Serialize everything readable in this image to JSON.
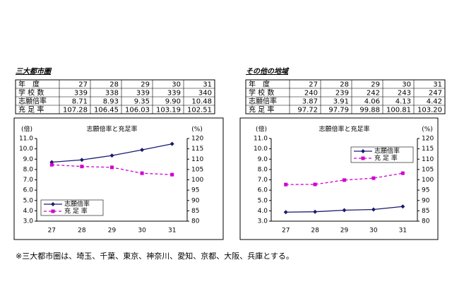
{
  "panels": [
    {
      "heading": "三大都市圏",
      "table": {
        "header": [
          "年　度",
          "27",
          "28",
          "29",
          "30",
          "31"
        ],
        "rows": [
          [
            "学 校 数",
            "339",
            "338",
            "339",
            "339",
            "340"
          ],
          [
            "志願倍率",
            "8.71",
            "8.93",
            "9.35",
            "9.90",
            "10.48"
          ],
          [
            "充 足 率",
            "107.28",
            "106.45",
            "106.03",
            "103.19",
            "102.51"
          ]
        ]
      }
    },
    {
      "heading": "その他の地域",
      "table": {
        "header": [
          "年　度",
          "27",
          "28",
          "29",
          "30",
          "31"
        ],
        "rows": [
          [
            "学 校 数",
            "240",
            "239",
            "242",
            "243",
            "247"
          ],
          [
            "志願倍率",
            "3.87",
            "3.91",
            "4.06",
            "4.13",
            "4.42"
          ],
          [
            "充 足 率",
            "97.72",
            "97.79",
            "99.88",
            "100.81",
            "103.20"
          ]
        ]
      }
    }
  ],
  "chart_data": [
    {
      "type": "line",
      "title": "志願倍率と充足率",
      "y_label": "(倍)",
      "y2_label": "(%)",
      "categories": [
        "27",
        "28",
        "29",
        "30",
        "31"
      ],
      "ylim": [
        3,
        11
      ],
      "yticks": [
        {
          "value": 3,
          "label": "3.0"
        },
        {
          "value": 4,
          "label": "4.0"
        },
        {
          "value": 5,
          "label": "5.0"
        },
        {
          "value": 6,
          "label": "6.0"
        },
        {
          "value": 7,
          "label": "7.0"
        },
        {
          "value": 8,
          "label": "8.0"
        },
        {
          "value": 9,
          "label": "9.0"
        },
        {
          "value": 10,
          "label": "10.0"
        },
        {
          "value": 11,
          "label": "11.0"
        }
      ],
      "y2lim": [
        80,
        120
      ],
      "y2ticks": [
        80,
        85,
        90,
        95,
        100,
        105,
        110,
        115,
        120
      ],
      "legend": "lower left",
      "series": [
        {
          "name": "志願倍率",
          "color": "#1a1a6e",
          "values": [
            8.71,
            8.93,
            9.35,
            9.9,
            10.48
          ]
        },
        {
          "name": "充 足 率",
          "color": "#d000d0",
          "axis": "y2",
          "values": [
            107.28,
            106.45,
            106.03,
            103.19,
            102.51
          ]
        }
      ]
    },
    {
      "type": "line",
      "title": "志願倍率と充足率",
      "y_label": "(倍)",
      "y2_label": "(%)",
      "categories": [
        "27",
        "28",
        "29",
        "30",
        "31"
      ],
      "ylim": [
        3,
        11
      ],
      "yticks": [
        {
          "value": 3,
          "label": "3.0"
        },
        {
          "value": 4,
          "label": "4.0"
        },
        {
          "value": 5,
          "label": "5.0"
        },
        {
          "value": 6,
          "label": "6.0"
        },
        {
          "value": 7,
          "label": "7.0"
        },
        {
          "value": 8,
          "label": "8.0"
        },
        {
          "value": 9,
          "label": "9.0"
        },
        {
          "value": 10,
          "label": "10.0"
        },
        {
          "value": 11,
          "label": "11.0"
        }
      ],
      "y2lim": [
        80,
        120
      ],
      "y2ticks": [
        80,
        85,
        90,
        95,
        100,
        105,
        110,
        115,
        120
      ],
      "legend": "upper right",
      "series": [
        {
          "name": "志願倍率",
          "color": "#1a1a6e",
          "values": [
            3.87,
            3.91,
            4.06,
            4.13,
            4.42
          ]
        },
        {
          "name": "充 足 率",
          "color": "#d000d0",
          "axis": "y2",
          "values": [
            97.72,
            97.79,
            99.88,
            100.81,
            103.2
          ]
        }
      ]
    }
  ],
  "footnote": "※三大都市圏は、埼玉、千葉、東京、神奈川、愛知、京都、大阪、兵庫とする。"
}
